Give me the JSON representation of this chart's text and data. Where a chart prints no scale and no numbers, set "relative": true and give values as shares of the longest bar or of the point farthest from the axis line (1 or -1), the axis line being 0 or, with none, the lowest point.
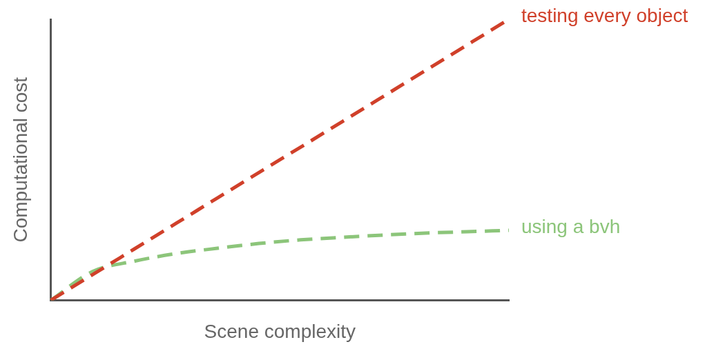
{
  "chart_data": {
    "type": "line",
    "relative": true,
    "xlabel": "Scene complexity",
    "ylabel": "Computational cost",
    "categories": [
      null,
      null,
      null,
      null,
      null,
      null,
      null,
      null,
      null,
      null,
      null,
      null
    ],
    "line_style": "dashed",
    "marker": "none",
    "legend": false,
    "grid": false,
    "series": [
      {
        "name": "testing every object",
        "color": "#d0402a",
        "values": [
          0,
          0.091,
          0.182,
          0.273,
          0.364,
          0.455,
          0.545,
          0.636,
          0.727,
          0.818,
          0.909,
          1
        ]
      },
      {
        "name": "using a bvh",
        "color": "#8cc57a",
        "values": [
          0,
          0.102,
          0.139,
          0.166,
          0.185,
          0.202,
          0.215,
          0.224,
          0.232,
          0.239,
          0.244,
          0.249
        ]
      }
    ]
  }
}
